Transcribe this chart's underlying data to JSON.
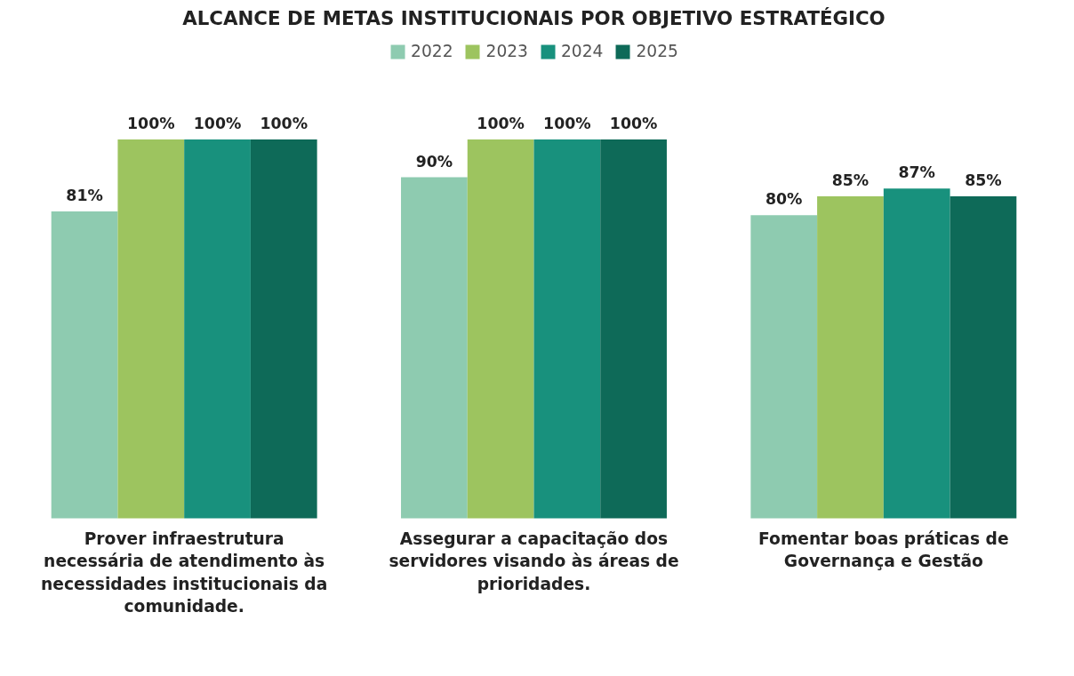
{
  "chart_data": {
    "type": "bar",
    "title": "ALCANCE DE METAS INSTITUCIONAIS POR OBJETIVO ESTRATÉGICO",
    "categories": [
      "Prover infraestrutura necessária de atendimento às necessidades institucionais da comunidade.",
      "Assegurar a capacitação dos servidores visando às áreas de prioridades.",
      "Fomentar boas práticas de Governança e Gestão"
    ],
    "series": [
      {
        "name": "2022",
        "color": "#8ecbb0",
        "values": [
          81,
          90,
          80
        ],
        "value_labels": [
          "81%",
          "90%",
          "80%"
        ]
      },
      {
        "name": "2023",
        "color": "#9dc45f",
        "values": [
          100,
          100,
          85
        ],
        "value_labels": [
          "100%",
          "100%",
          "85%"
        ]
      },
      {
        "name": "2024",
        "color": "#18917d",
        "values": [
          100,
          100,
          87
        ],
        "value_labels": [
          "100%",
          "100%",
          "87%"
        ]
      },
      {
        "name": "2025",
        "color": "#0e6a58",
        "values": [
          100,
          100,
          85
        ],
        "value_labels": [
          "100%",
          "100%",
          "85%"
        ]
      }
    ],
    "grid": false,
    "legend": "top"
  }
}
